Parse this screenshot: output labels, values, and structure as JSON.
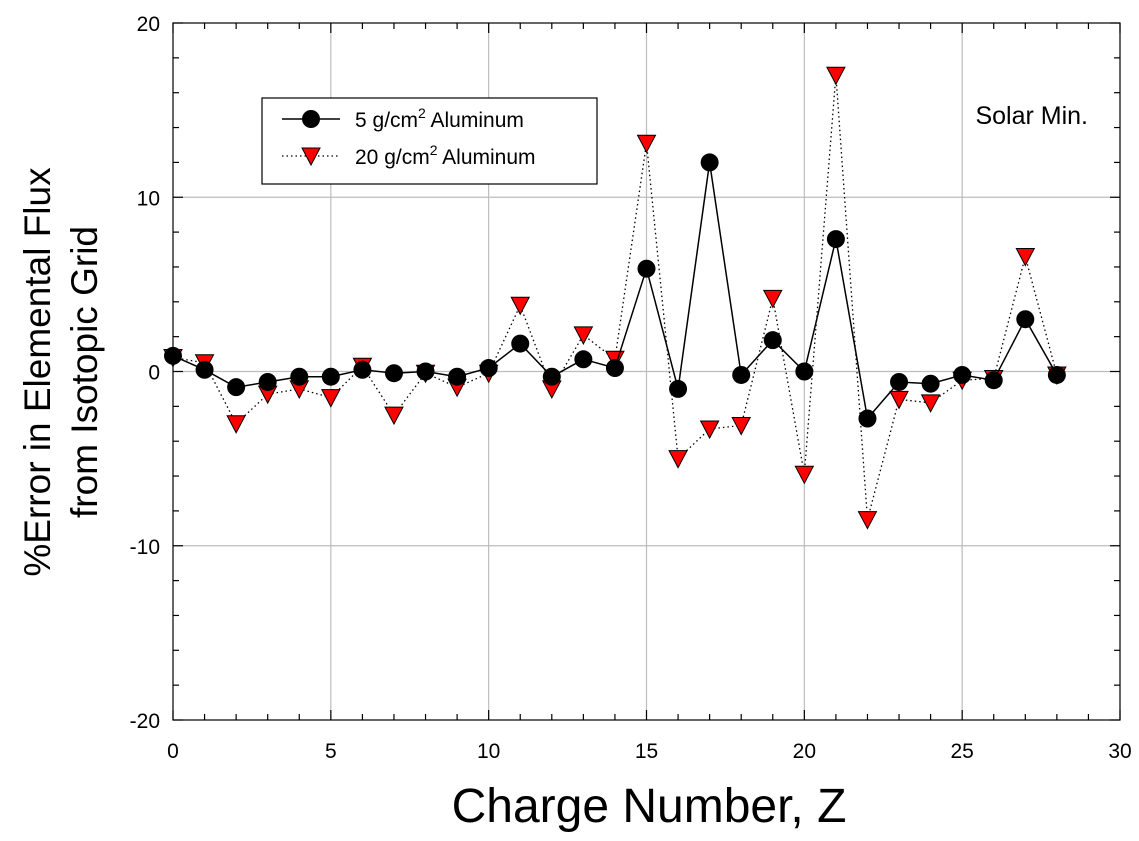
{
  "chart_data": {
    "type": "line",
    "title": "",
    "xlabel": "Charge Number, Z",
    "ylabel_line1": "%Error in Elemental Flux",
    "ylabel_line2": "from Isotopic Grid",
    "xlim": [
      0,
      30
    ],
    "ylim": [
      -20,
      20
    ],
    "xticks": [
      0,
      5,
      10,
      15,
      20,
      25,
      30
    ],
    "yticks": [
      -20,
      -10,
      0,
      10,
      20
    ],
    "grid": true,
    "legend_position": "top-left",
    "annotation": "Solar Min.",
    "x": [
      0,
      1,
      2,
      3,
      4,
      5,
      6,
      7,
      8,
      9,
      10,
      11,
      12,
      13,
      14,
      15,
      16,
      17,
      18,
      19,
      20,
      21,
      22,
      23,
      24,
      25,
      26,
      27,
      28
    ],
    "series": [
      {
        "name_prefix": "5 g/cm",
        "name_sup": "2",
        "name_suffix": " Aluminum",
        "style": "solid",
        "marker": "circle",
        "color": "#000000",
        "values": [
          0.9,
          0.1,
          -0.9,
          -0.6,
          -0.3,
          -0.3,
          0.1,
          -0.1,
          0.0,
          -0.3,
          0.2,
          1.6,
          -0.3,
          0.7,
          0.2,
          5.9,
          -1.0,
          12.0,
          -0.2,
          1.8,
          0.0,
          7.6,
          -2.7,
          -0.6,
          -0.7,
          -0.2,
          -0.5,
          3.0,
          -0.2
        ]
      },
      {
        "name_prefix": "20 g/cm",
        "name_sup": "2",
        "name_suffix": " Aluminum",
        "style": "dotted",
        "marker": "triangle-down",
        "color": "#ff0000",
        "values": [
          0.8,
          0.5,
          -3.0,
          -1.3,
          -1.0,
          -1.5,
          0.3,
          -2.5,
          -0.1,
          -0.9,
          -0.1,
          3.8,
          -1.0,
          2.1,
          0.7,
          13.1,
          -5.0,
          -3.3,
          -3.1,
          4.2,
          -5.9,
          17.0,
          -8.5,
          -1.6,
          -1.8,
          -0.5,
          -0.4,
          6.6,
          -0.2
        ]
      }
    ]
  }
}
